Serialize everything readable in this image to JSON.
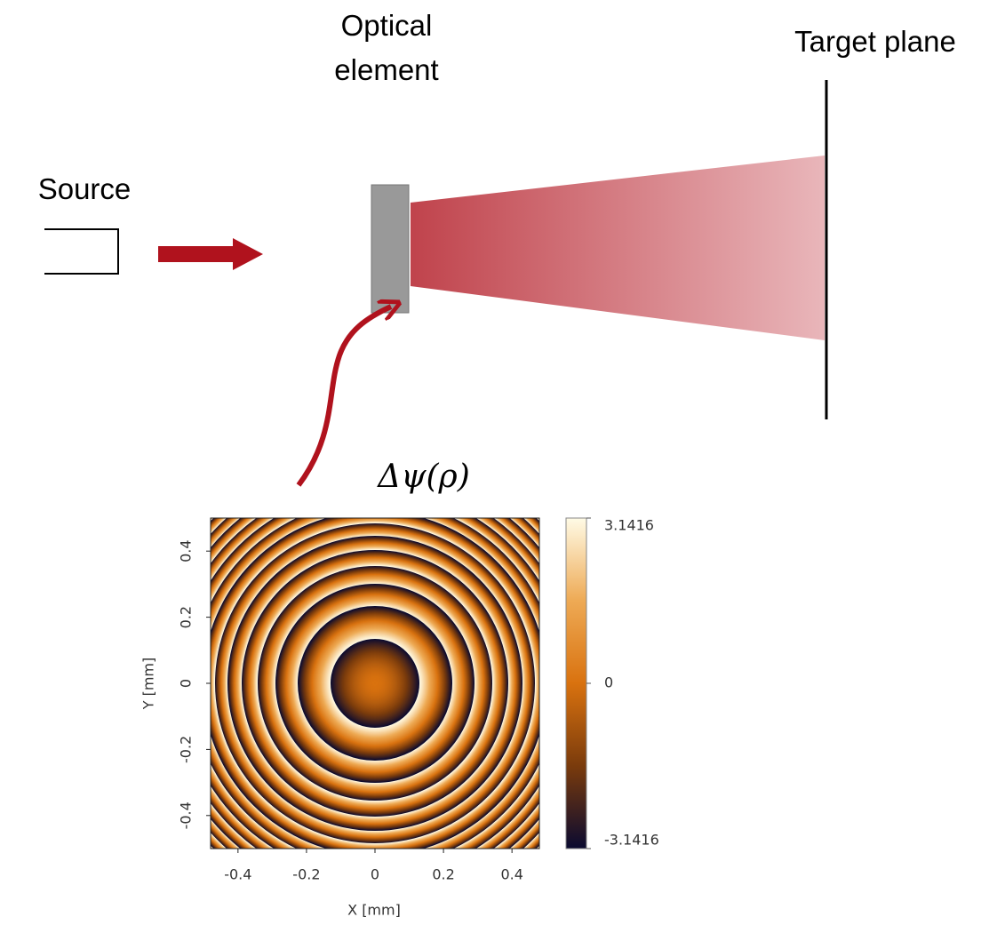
{
  "diagram": {
    "source": {
      "label": "Source"
    },
    "optical_element": {
      "label": [
        "Optical",
        "element"
      ]
    },
    "target_plane": {
      "label": "Target plane"
    }
  },
  "chart_data": {
    "type": "heatmap",
    "title": "Δψ(ρ)",
    "x_label": "X [mm]",
    "y_label": "Y [mm]",
    "xlim": [
      -0.48,
      0.48
    ],
    "ylim": [
      -0.5,
      0.5
    ],
    "xticks": [
      -0.4,
      -0.2,
      0,
      0.2,
      0.4
    ],
    "yticks": [
      -0.4,
      -0.2,
      0,
      0.2,
      0.4
    ],
    "colorbar": {
      "clim": [
        -3.1416,
        3.1416
      ],
      "ticks": [
        -3.1416,
        0,
        3.1416
      ]
    }
  }
}
